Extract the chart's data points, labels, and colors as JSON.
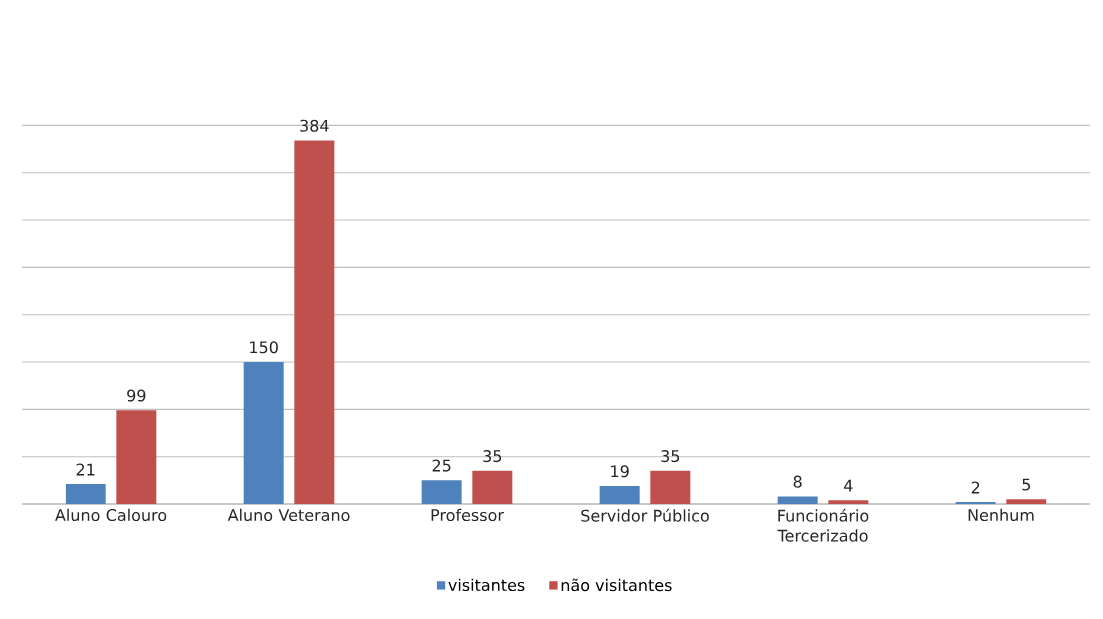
{
  "chart_data": {
    "type": "bar",
    "categories": [
      "Aluno Calouro",
      "Aluno Veterano",
      "Professor",
      "Servidor Público",
      "Funcionário Tercerizado",
      "Nenhum"
    ],
    "series": [
      {
        "name": "visitantes",
        "color": "#4f81bd",
        "values": [
          21,
          150,
          25,
          19,
          8,
          2
        ]
      },
      {
        "name": "não visitantes",
        "color": "#c0504d",
        "values": [
          99,
          384,
          35,
          35,
          4,
          5
        ]
      }
    ],
    "grid": "y",
    "legend": "bottom",
    "data_labels": true,
    "tick_labels": "x"
  }
}
